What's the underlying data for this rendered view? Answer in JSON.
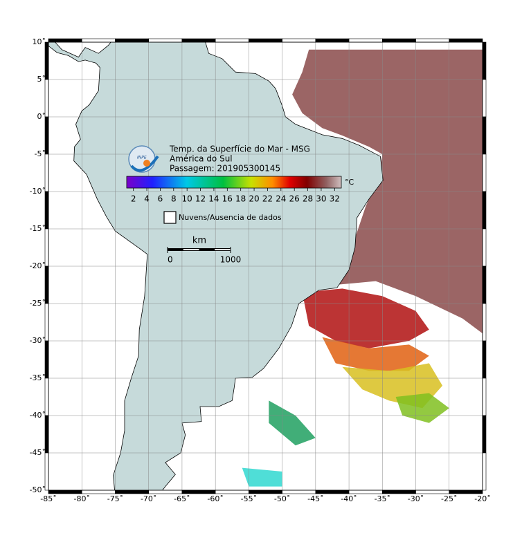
{
  "map": {
    "title": "Temp. da Superfície do Mar - MSG",
    "region": "América do Sul",
    "pass": "Passagem: 201905300145",
    "logo": "INPE",
    "xlim": [
      -85,
      -20
    ],
    "ylim": [
      -50,
      10
    ],
    "xticks": [
      {
        "value": -85,
        "label": "-85˚"
      },
      {
        "value": -80,
        "label": "-80˚"
      },
      {
        "value": -75,
        "label": "-75˚"
      },
      {
        "value": -70,
        "label": "-70˚"
      },
      {
        "value": -65,
        "label": "-65˚"
      },
      {
        "value": -60,
        "label": "-60˚"
      },
      {
        "value": -55,
        "label": "-55˚"
      },
      {
        "value": -50,
        "label": "-50˚"
      },
      {
        "value": -45,
        "label": "-45˚"
      },
      {
        "value": -40,
        "label": "-40˚"
      },
      {
        "value": -35,
        "label": "-35˚"
      },
      {
        "value": -30,
        "label": "-30˚"
      },
      {
        "value": -25,
        "label": "-25˚"
      },
      {
        "value": -20,
        "label": "-20˚"
      }
    ],
    "yticks": [
      {
        "value": 10,
        "label": "10˚"
      },
      {
        "value": 5,
        "label": "5˚"
      },
      {
        "value": 0,
        "label": "0˚"
      },
      {
        "value": -5,
        "label": "-5˚"
      },
      {
        "value": -10,
        "label": "-10˚"
      },
      {
        "value": -15,
        "label": "-15˚"
      },
      {
        "value": -20,
        "label": "-20˚"
      },
      {
        "value": -25,
        "label": "-25˚"
      },
      {
        "value": -30,
        "label": "-30˚"
      },
      {
        "value": -35,
        "label": "-35˚"
      },
      {
        "value": -40,
        "label": "-40˚"
      },
      {
        "value": -45,
        "label": "-45˚"
      },
      {
        "value": -50,
        "label": "-50˚"
      }
    ],
    "grid": true,
    "colorbar": {
      "unit": "°C",
      "lim": [
        1,
        33
      ],
      "ticks": [
        2,
        4,
        6,
        8,
        10,
        12,
        14,
        16,
        18,
        20,
        22,
        24,
        26,
        28,
        30,
        32
      ]
    },
    "nodata_label": "Nuvens/Ausencia de dados",
    "scale": {
      "unit": "km",
      "ticks": [
        0,
        1000
      ]
    }
  }
}
